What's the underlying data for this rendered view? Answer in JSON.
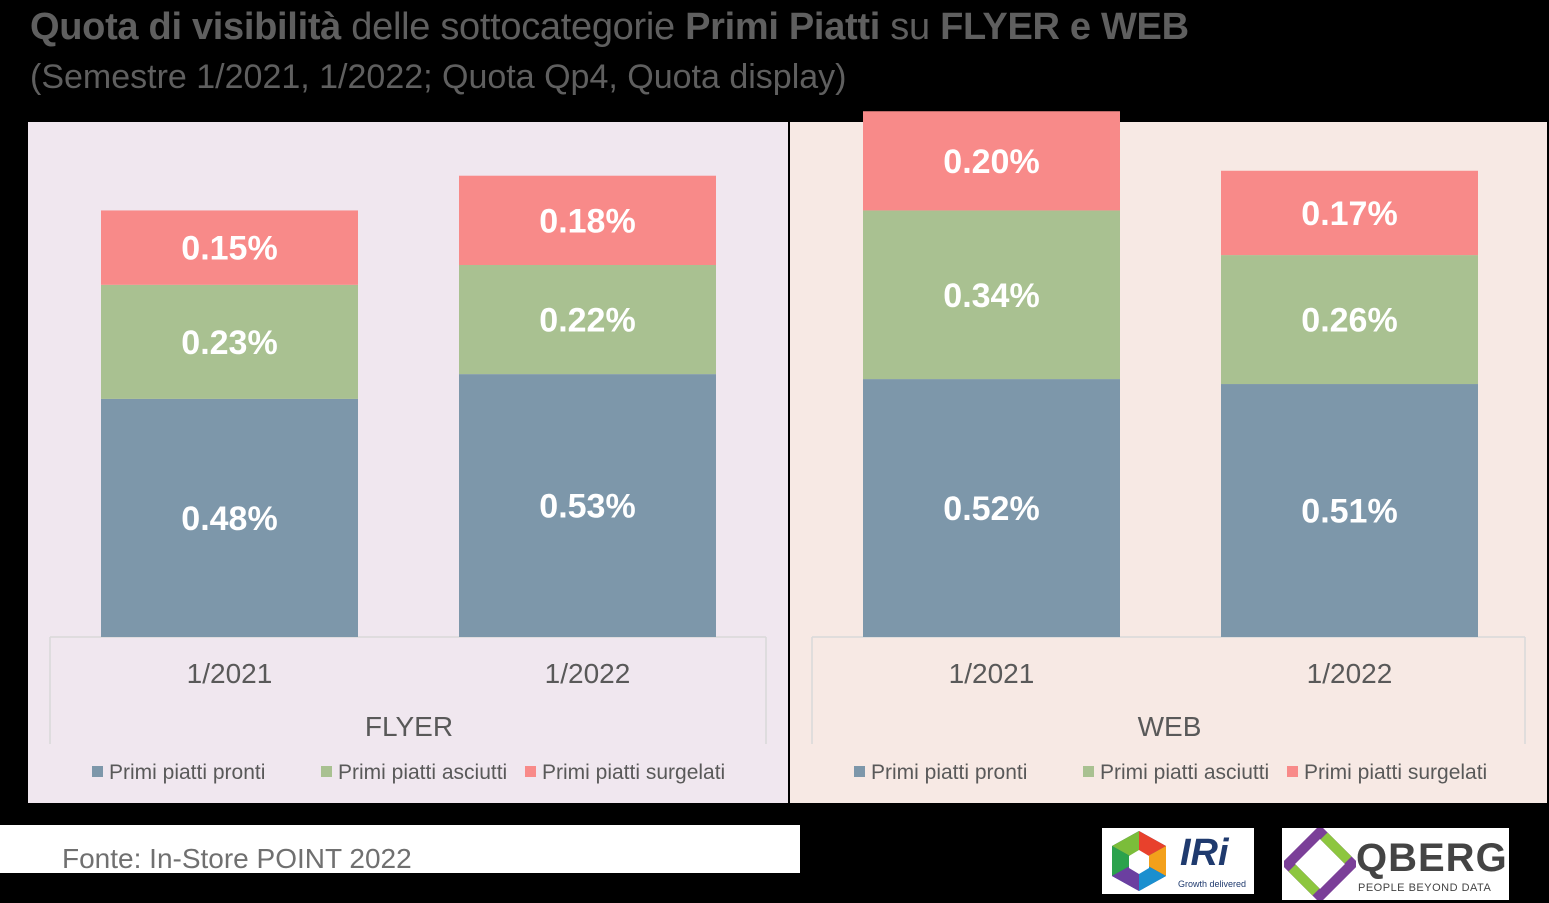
{
  "title": {
    "part1": "Quota di visibilità",
    "part2": " delle sottocategorie ",
    "part3": "Primi Piatti",
    "part4": " su ",
    "part5": "FLYER e WEB"
  },
  "subtitle": "(Semestre 1/2021, 1/2022; Quota Qp4, Quota display)",
  "source": "Fonte: In-Store POINT 2022",
  "logos": {
    "iri": {
      "name": "IRi",
      "tagline": "Growth delivered"
    },
    "qberg": {
      "name": "QBERG",
      "tagline": "PEOPLE BEYOND DATA"
    }
  },
  "colors": {
    "pronti": "#7d97aa",
    "asciutti": "#a9c191",
    "surgelati": "#f88a89",
    "panel_flyer": "#f0e7ef",
    "panel_web": "#f7e9e4"
  },
  "chart_data": [
    {
      "type": "bar",
      "stacked": true,
      "group_label": "FLYER",
      "categories": [
        "1/2021",
        "1/2022"
      ],
      "series": [
        {
          "name": "Primi piatti pronti",
          "values": [
            0.48,
            0.53
          ],
          "labels": [
            "0.48%",
            "0.53%"
          ]
        },
        {
          "name": "Primi piatti asciutti",
          "values": [
            0.23,
            0.22
          ],
          "labels": [
            "0.23%",
            "0.22%"
          ]
        },
        {
          "name": "Primi piatti surgelati",
          "values": [
            0.15,
            0.18
          ],
          "labels": [
            "0.15%",
            "0.18%"
          ]
        }
      ],
      "unit": "%",
      "legend_position": "bottom"
    },
    {
      "type": "bar",
      "stacked": true,
      "group_label": "WEB",
      "categories": [
        "1/2021",
        "1/2022"
      ],
      "series": [
        {
          "name": "Primi piatti pronti",
          "values": [
            0.52,
            0.51
          ],
          "labels": [
            "0.52%",
            "0.51%"
          ]
        },
        {
          "name": "Primi piatti asciutti",
          "values": [
            0.34,
            0.26
          ],
          "labels": [
            "0.34%",
            "0.26%"
          ]
        },
        {
          "name": "Primi piatti surgelati",
          "values": [
            0.2,
            0.17
          ],
          "labels": [
            "0.20%",
            "0.17%"
          ]
        }
      ],
      "unit": "%",
      "legend_position": "bottom"
    }
  ]
}
